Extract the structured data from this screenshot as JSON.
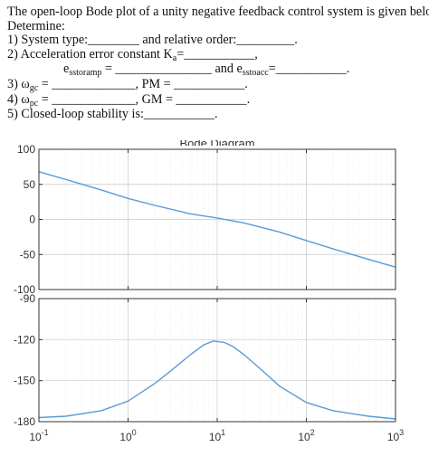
{
  "question": {
    "intro": "The open-loop Bode plot of a unity negative feedback control system is given below.",
    "determine": "Determine:",
    "item1": "1)  System type:________ and relative order:_________.",
    "item2": "2)  Acceleration error constant K",
    "item2_sub": "a",
    "item2_tail": "=___________,",
    "item2b_pre": "e",
    "item2b_sub1": "sstoramp",
    "item2b_mid": " = _______________ and e",
    "item2b_sub2": "sstoacc",
    "item2b_tail": "=___________.",
    "item3": "3)  ω",
    "item3_sub1": "gc",
    "item3_mid": " = _____________, PM = ___________.",
    "item4": "4)  ω",
    "item4_sub1": "pc",
    "item4_mid": " = _____________, GM = ___________.",
    "item5": "5)  Closed-loop stability is:___________."
  },
  "figure": {
    "title_partial": "Bode Diagram"
  },
  "chart_data": [
    {
      "type": "line",
      "name": "magnitude",
      "xscale": "log",
      "xlim": [
        0.1,
        1000
      ],
      "ylim": [
        -100,
        100
      ],
      "yticks": [
        100,
        50,
        0,
        -50,
        -100
      ],
      "grid": true,
      "color": "#5b9bd5",
      "x": [
        0.1,
        0.2,
        0.5,
        1,
        2,
        5,
        10,
        20,
        50,
        100,
        200,
        500,
        1000
      ],
      "y": [
        68,
        57,
        42,
        30,
        20,
        8,
        2,
        -5,
        -18,
        -30,
        -42,
        -57,
        -68
      ]
    },
    {
      "type": "line",
      "name": "phase",
      "xscale": "log",
      "xlim": [
        0.1,
        1000
      ],
      "ylim": [
        -180,
        -90
      ],
      "yticks": [
        -90,
        -120,
        -150,
        -180
      ],
      "xticks": [
        "10^-1",
        "10^0",
        "10^1",
        "10^2",
        "10^3"
      ],
      "grid": true,
      "color": "#5b9bd5",
      "x": [
        0.1,
        0.2,
        0.5,
        1,
        2,
        3,
        5,
        7,
        9,
        12,
        15,
        20,
        30,
        50,
        100,
        200,
        500,
        1000
      ],
      "y": [
        -177,
        -176,
        -172,
        -165,
        -152,
        -143,
        -131,
        -124,
        -121,
        -122,
        -125,
        -131,
        -141,
        -154,
        -166,
        -172,
        -176,
        -178
      ]
    }
  ]
}
